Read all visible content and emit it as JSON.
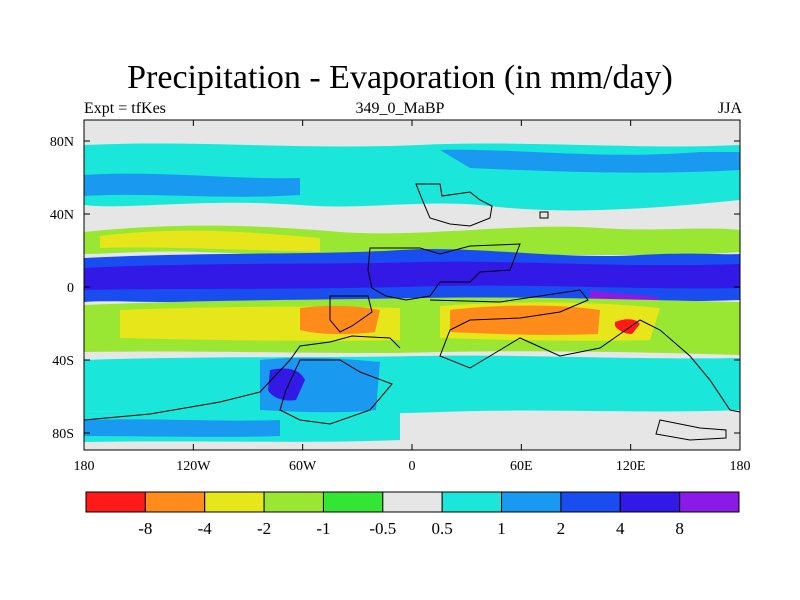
{
  "title": "Precipitation - Evaporation (in mm/day)",
  "subtitle_left": "Expt = tfKes",
  "subtitle_center": "349_0_MaBP",
  "subtitle_right": "JJA",
  "x_ticks": [
    "180",
    "120W",
    "60W",
    "0",
    "60E",
    "120E",
    "180"
  ],
  "y_ticks": [
    "80N",
    "40N",
    "0",
    "40S",
    "80S"
  ],
  "colorbar": {
    "colors": [
      "#ff1a1a",
      "#ff8c1a",
      "#e6e61a",
      "#99e633",
      "#33e633",
      "#e6e6e6",
      "#1ae6d9",
      "#1a99f0",
      "#1a4df0",
      "#3319e6",
      "#8c1ae6"
    ],
    "labels": [
      "-8",
      "-4",
      "-2",
      "-1",
      "-0.5",
      "0.5",
      "1",
      "2",
      "4",
      "8"
    ]
  },
  "colors": {
    "land_outline": "#000000",
    "neutral": "#e6e6e6"
  }
}
